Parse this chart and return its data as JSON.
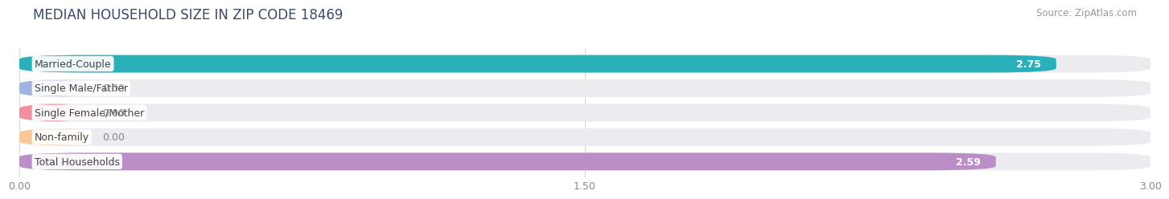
{
  "title": "MEDIAN HOUSEHOLD SIZE IN ZIP CODE 18469",
  "source": "Source: ZipAtlas.com",
  "categories": [
    "Married-Couple",
    "Single Male/Father",
    "Single Female/Mother",
    "Non-family",
    "Total Households"
  ],
  "values": [
    2.75,
    0.0,
    0.0,
    0.0,
    2.59
  ],
  "bar_colors": [
    "#29b0b8",
    "#a0b4e2",
    "#f090a0",
    "#f8c898",
    "#bc8ec8"
  ],
  "bar_bg_color": "#ebebf0",
  "bar_bg_color2": "#f5f5f8",
  "xlim": [
    0,
    3.0
  ],
  "xticks": [
    0.0,
    1.5,
    3.0
  ],
  "xtick_labels": [
    "0.00",
    "1.50",
    "3.00"
  ],
  "title_fontsize": 12,
  "source_fontsize": 8.5,
  "label_fontsize": 9,
  "value_fontsize": 9,
  "background_color": "#ffffff",
  "grid_color": "#d8d8d8",
  "title_color": "#3a4a6a",
  "source_color": "#999999",
  "label_color": "#444444",
  "value_color_inside": "#ffffff",
  "value_color_outside": "#888888"
}
